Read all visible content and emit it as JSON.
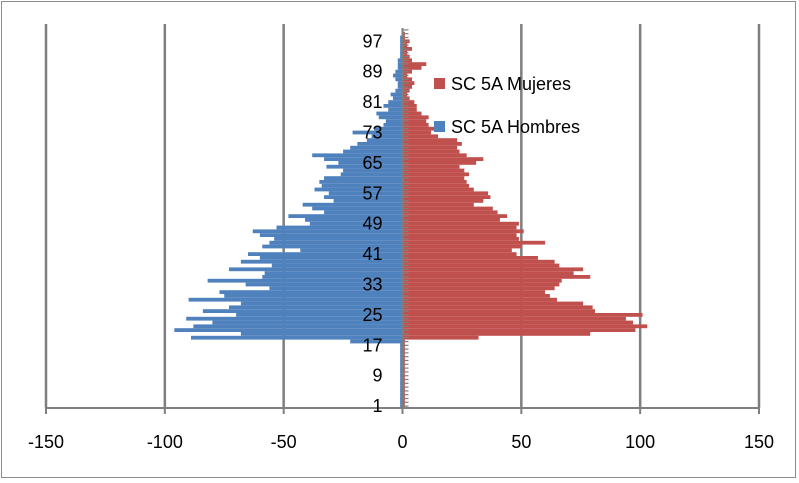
{
  "chart_data": {
    "type": "bar",
    "orientation": "horizontal",
    "subtype": "population-pyramid",
    "grid": true,
    "legend_position": "right",
    "xlim": [
      -150,
      150
    ],
    "x_ticks": [
      -150,
      -100,
      -50,
      0,
      50,
      100,
      150
    ],
    "x_tick_labels": [
      "-150",
      "-100",
      "-50",
      "0",
      "50",
      "100",
      "150"
    ],
    "y_ticks": [
      1,
      9,
      17,
      25,
      33,
      41,
      49,
      57,
      65,
      73,
      81,
      89,
      97
    ],
    "y_tick_labels": [
      "1",
      "9",
      "17",
      "25",
      "33",
      "41",
      "49",
      "57",
      "65",
      "73",
      "81",
      "89",
      "97"
    ],
    "categories": [
      1,
      2,
      3,
      4,
      5,
      6,
      7,
      8,
      9,
      10,
      11,
      12,
      13,
      14,
      15,
      16,
      17,
      18,
      19,
      20,
      21,
      22,
      23,
      24,
      25,
      26,
      27,
      28,
      29,
      30,
      31,
      32,
      33,
      34,
      35,
      36,
      37,
      38,
      39,
      40,
      41,
      42,
      43,
      44,
      45,
      46,
      47,
      48,
      49,
      50,
      51,
      52,
      53,
      54,
      55,
      56,
      57,
      58,
      59,
      60,
      61,
      62,
      63,
      64,
      65,
      66,
      67,
      68,
      69,
      70,
      71,
      72,
      73,
      74,
      75,
      76,
      77,
      78,
      79,
      80,
      81,
      82,
      83,
      84,
      85,
      86,
      87,
      88,
      89,
      90,
      91,
      92,
      93,
      94,
      95,
      96,
      97,
      98,
      99,
      100
    ],
    "series": [
      {
        "name": "SC 5A Mujeres",
        "color": "#c0504d",
        "values": [
          1,
          1,
          1,
          1,
          1,
          1,
          1,
          1,
          1,
          1,
          1,
          1,
          1,
          1,
          1,
          1,
          1,
          1,
          32,
          79,
          98,
          103,
          97,
          94,
          101,
          81,
          80,
          76,
          65,
          62,
          60,
          64,
          66,
          67,
          79,
          72,
          76,
          66,
          64,
          57,
          48,
          46,
          50,
          60,
          49,
          48,
          51,
          48,
          49,
          41,
          44,
          40,
          38,
          30,
          34,
          37,
          36,
          30,
          28,
          27,
          26,
          28,
          26,
          24,
          31,
          34,
          27,
          24,
          23,
          25,
          23,
          15,
          12,
          15,
          11,
          10,
          11,
          8,
          6,
          6,
          5,
          3,
          2,
          3,
          4,
          5,
          4,
          2,
          4,
          8,
          10,
          4,
          3,
          2,
          4,
          2,
          3,
          1,
          1,
          0
        ]
      },
      {
        "name": "SC 5A Hombres",
        "color": "#4f81bd",
        "values": [
          -1,
          -1,
          -1,
          -1,
          -1,
          -1,
          -1,
          -1,
          -1,
          -1,
          -1,
          -1,
          -1,
          -1,
          -1,
          -1,
          -1,
          -22,
          -89,
          -68,
          -96,
          -88,
          -80,
          -91,
          -70,
          -84,
          -73,
          -68,
          -90,
          -75,
          -77,
          -56,
          -66,
          -82,
          -59,
          -58,
          -73,
          -55,
          -68,
          -60,
          -65,
          -43,
          -59,
          -56,
          -54,
          -60,
          -63,
          -53,
          -39,
          -41,
          -48,
          -33,
          -38,
          -42,
          -29,
          -33,
          -31,
          -37,
          -34,
          -35,
          -33,
          -26,
          -25,
          -32,
          -27,
          -33,
          -38,
          -25,
          -22,
          -19,
          -15,
          -13,
          -21,
          -12,
          -8,
          -7,
          -10,
          -11,
          -6,
          -8,
          -6,
          -4,
          -5,
          -3,
          -2,
          -2,
          -3,
          -4,
          -3,
          -2,
          -2,
          -2,
          -1,
          -1,
          -1,
          -1,
          -1,
          -1,
          0,
          0
        ]
      }
    ]
  }
}
